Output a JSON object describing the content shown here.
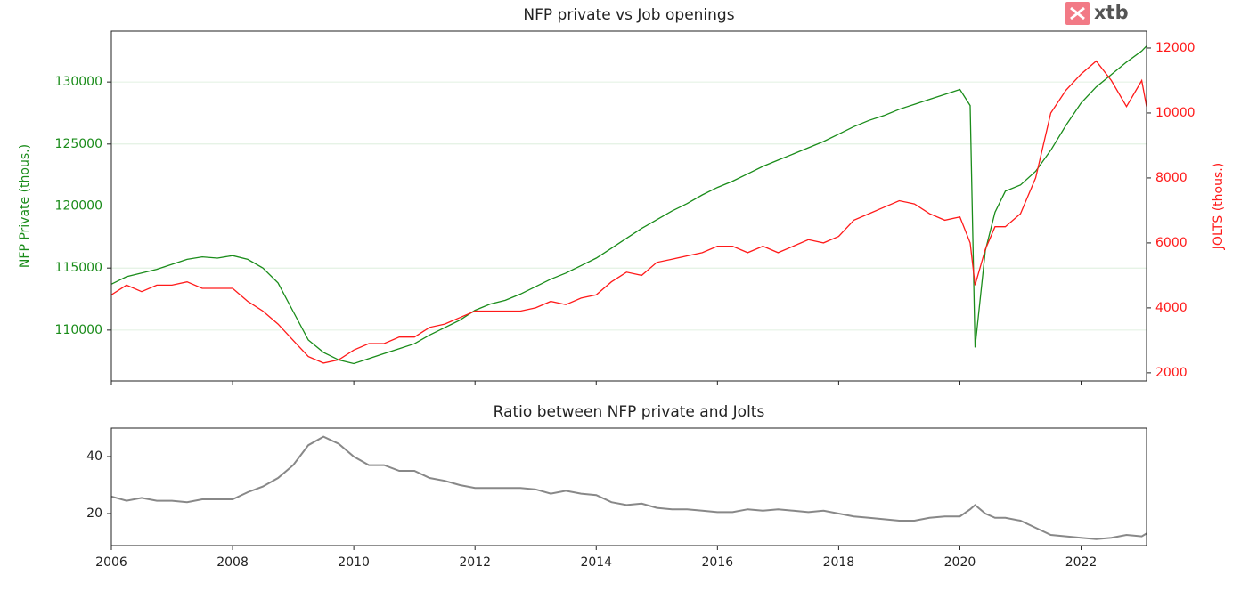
{
  "logo": "xtb",
  "chart_data": [
    {
      "type": "line",
      "title": "NFP private vs Job openings",
      "ylabel": "NFP Private (thous.)",
      "y2label": "JOLTS (thous.)",
      "x": [
        2006,
        2006.25,
        2006.5,
        2006.75,
        2007,
        2007.25,
        2007.5,
        2007.75,
        2008,
        2008.25,
        2008.5,
        2008.75,
        2009,
        2009.25,
        2009.5,
        2009.75,
        2010,
        2010.25,
        2010.5,
        2010.75,
        2011,
        2011.25,
        2011.5,
        2011.75,
        2012,
        2012.25,
        2012.5,
        2012.75,
        2013,
        2013.25,
        2013.5,
        2013.75,
        2014,
        2014.25,
        2014.5,
        2014.75,
        2015,
        2015.25,
        2015.5,
        2015.75,
        2016,
        2016.25,
        2016.5,
        2016.75,
        2017,
        2017.25,
        2017.5,
        2017.75,
        2018,
        2018.25,
        2018.5,
        2018.75,
        2019,
        2019.25,
        2019.5,
        2019.75,
        2020,
        2020.17,
        2020.25,
        2020.42,
        2020.58,
        2020.75,
        2021,
        2021.25,
        2021.5,
        2021.75,
        2022,
        2022.25,
        2022.5,
        2022.75,
        2023,
        2023.08
      ],
      "series": [
        {
          "color": "#1a8c1a",
          "values": [
            113700,
            114300,
            114600,
            114900,
            115300,
            115700,
            115900,
            115800,
            116000,
            115700,
            115000,
            113800,
            111500,
            109200,
            108200,
            107600,
            107300,
            107700,
            108100,
            108500,
            108900,
            109600,
            110200,
            110800,
            111600,
            112100,
            112400,
            112900,
            113500,
            114100,
            114600,
            115200,
            115800,
            116600,
            117400,
            118200,
            118900,
            119600,
            120200,
            120900,
            121500,
            122000,
            122600,
            123200,
            123700,
            124200,
            124700,
            125200,
            125800,
            126400,
            126900,
            127300,
            127800,
            128200,
            128600,
            129000,
            129400,
            128100,
            108600,
            116400,
            119500,
            121200,
            121700,
            122800,
            124500,
            126500,
            128300,
            129600,
            130600,
            131600,
            132500,
            132900
          ]
        },
        {
          "color": "#ff1a1a",
          "axis": "y2",
          "values": [
            4400,
            4700,
            4500,
            4700,
            4700,
            4800,
            4600,
            4600,
            4600,
            4200,
            3900,
            3500,
            3000,
            2500,
            2300,
            2400,
            2700,
            2900,
            2900,
            3100,
            3100,
            3400,
            3500,
            3700,
            3900,
            3900,
            3900,
            3900,
            4000,
            4200,
            4100,
            4300,
            4400,
            4800,
            5100,
            5000,
            5400,
            5500,
            5600,
            5700,
            5900,
            5900,
            5700,
            5900,
            5700,
            5900,
            6100,
            6000,
            6200,
            6700,
            6900,
            7100,
            7300,
            7200,
            6900,
            6700,
            6800,
            6000,
            4700,
            5800,
            6500,
            6500,
            6900,
            8000,
            10000,
            10700,
            11200,
            11600,
            11000,
            10200,
            11000,
            10200
          ]
        }
      ],
      "xlim": [
        2006,
        2023.08
      ],
      "xticks": [
        2006,
        2008,
        2010,
        2012,
        2014,
        2016,
        2018,
        2020,
        2022
      ],
      "ylim": [
        105900,
        134100
      ],
      "yticks": [
        110000,
        115000,
        120000,
        125000,
        130000
      ],
      "y2lim": [
        1750,
        12520
      ],
      "y2ticks": [
        2000,
        4000,
        6000,
        8000,
        10000,
        12000
      ],
      "grid": true
    },
    {
      "type": "line",
      "title": "Ratio between NFP private and Jolts",
      "x": [
        2006,
        2006.25,
        2006.5,
        2006.75,
        2007,
        2007.25,
        2007.5,
        2007.75,
        2008,
        2008.25,
        2008.5,
        2008.75,
        2009,
        2009.25,
        2009.5,
        2009.75,
        2010,
        2010.25,
        2010.5,
        2010.75,
        2011,
        2011.25,
        2011.5,
        2011.75,
        2012,
        2012.25,
        2012.5,
        2012.75,
        2013,
        2013.25,
        2013.5,
        2013.75,
        2014,
        2014.25,
        2014.5,
        2014.75,
        2015,
        2015.25,
        2015.5,
        2015.75,
        2016,
        2016.25,
        2016.5,
        2016.75,
        2017,
        2017.25,
        2017.5,
        2017.75,
        2018,
        2018.25,
        2018.5,
        2018.75,
        2019,
        2019.25,
        2019.5,
        2019.75,
        2020,
        2020.17,
        2020.25,
        2020.42,
        2020.58,
        2020.75,
        2021,
        2021.25,
        2021.5,
        2021.75,
        2022,
        2022.25,
        2022.5,
        2022.75,
        2023,
        2023.08
      ],
      "series": [
        {
          "color": "#888888",
          "values": [
            26,
            24.5,
            25.5,
            24.5,
            24.5,
            24,
            25,
            25,
            25,
            27.5,
            29.5,
            32.5,
            37,
            44,
            47,
            44.5,
            40,
            37,
            37,
            35,
            35,
            32.5,
            31.5,
            30,
            29,
            29,
            29,
            29,
            28.5,
            27,
            28,
            27,
            26.5,
            24,
            23,
            23.5,
            22,
            21.5,
            21.5,
            21,
            20.5,
            20.5,
            21.5,
            21,
            21.5,
            21,
            20.5,
            21,
            20,
            19,
            18.5,
            18,
            17.5,
            17.5,
            18.5,
            19,
            19,
            21.5,
            23,
            20,
            18.5,
            18.5,
            17.5,
            15,
            12.5,
            12,
            11.5,
            11,
            11.5,
            12.5,
            12,
            13
          ]
        }
      ],
      "xlim": [
        2006,
        2023.08
      ],
      "xticks": [
        2006,
        2008,
        2010,
        2012,
        2014,
        2016,
        2018,
        2020,
        2022
      ],
      "ylim": [
        8.75,
        50
      ],
      "yticks": [
        20,
        40
      ]
    }
  ]
}
